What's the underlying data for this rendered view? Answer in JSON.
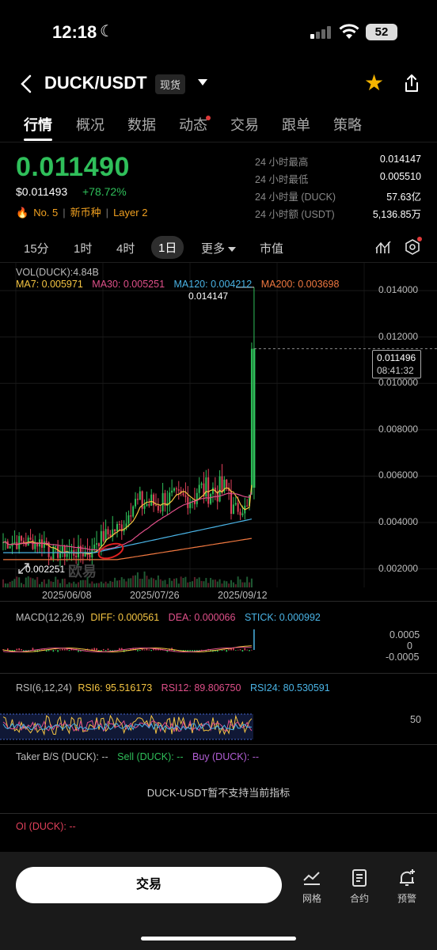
{
  "status_bar": {
    "time": "12:18",
    "battery": "52"
  },
  "header": {
    "pair": "DUCK/USDT",
    "market_badge": "现货"
  },
  "tabs": [
    "行情",
    "概况",
    "数据",
    "动态",
    "交易",
    "跟单",
    "策略"
  ],
  "ticker": {
    "last_price": "0.011490",
    "usd_price": "$0.011493",
    "change_pct": "+78.72%",
    "rank": "No. 5",
    "tag_new": "新币种",
    "tag_layer": "Layer 2",
    "stats": [
      {
        "label": "24 小时最高",
        "value": "0.014147"
      },
      {
        "label": "24 小时最低",
        "value": "0.005510"
      },
      {
        "label": "24 小时量 (DUCK)",
        "value": "57.63亿"
      },
      {
        "label": "24 小时额 (USDT)",
        "value": "5,136.85万"
      }
    ]
  },
  "intervals": {
    "items": [
      "15分",
      "1时",
      "4时",
      "1日",
      "更多",
      "市值"
    ],
    "active": "1日"
  },
  "chart_data": {
    "type": "line",
    "vol_label": "VOL(DUCK):4.84B",
    "ma": [
      {
        "label": "MA7: 0.005971",
        "color": "#f5c542"
      },
      {
        "label": "MA30: 0.005251",
        "color": "#e0508a"
      },
      {
        "label": "MA120: 0.004212",
        "color": "#4ab4e6"
      },
      {
        "label": "MA200: 0.003698",
        "color": "#f07840"
      }
    ],
    "y_ticks": [
      "0.014000",
      "0.012000",
      "0.010000",
      "0.008000",
      "0.006000",
      "0.004000",
      "0.002000"
    ],
    "y_values": [
      0.014,
      0.012,
      0.01,
      0.008,
      0.006,
      0.004,
      0.002
    ],
    "ylim": [
      0.0012,
      0.0152
    ],
    "x_ticks": [
      "2025/06/08",
      "2025/07/26",
      "2025/09/12"
    ],
    "high_label": "0.014147",
    "low_label": "0.002251",
    "current_price": "0.011496",
    "countdown": "08:41:32",
    "watermark": "欧易",
    "macd": {
      "label": "MACD(12,26,9)",
      "diff": "DIFF: 0.000561",
      "dea": "DEA: 0.000066",
      "stick": "STICK: 0.000992",
      "ticks": [
        "0.0005",
        "0",
        "-0.0005"
      ]
    },
    "rsi": {
      "label": "RSI(6,12,24)",
      "rsi6": "RSI6: 95.516173",
      "rsi12": "RSI12: 89.806750",
      "rsi24": "RSI24: 80.530591",
      "tick": "50"
    }
  },
  "colors": {
    "up": "#2fbf5a",
    "down": "#e0405a",
    "accent": "#f5b400"
  },
  "taker": {
    "title": "Taker B/S (DUCK): --",
    "sell": "Sell (DUCK): --",
    "buy": "Buy (DUCK): --",
    "message": "DUCK-USDT暂不支持当前指标"
  },
  "oi": {
    "label": "OI (DUCK): --"
  },
  "bottom_bar": {
    "trade_label": "交易",
    "nav": [
      {
        "icon": "grid-chart-icon",
        "label": "网格"
      },
      {
        "icon": "contract-icon",
        "label": "合约"
      },
      {
        "icon": "alert-bell-icon",
        "label": "预警"
      }
    ]
  }
}
